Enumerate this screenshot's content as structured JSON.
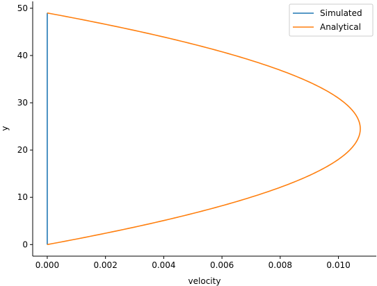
{
  "chart_data": {
    "type": "line",
    "title": "",
    "xlabel": "velocity",
    "ylabel": "y",
    "xlim": [
      -0.0005,
      0.0113
    ],
    "ylim": [
      -2.45,
      51.45
    ],
    "xticks": [
      0.0,
      0.002,
      0.004,
      0.006,
      0.008,
      0.01
    ],
    "xtick_labels": [
      "0.000",
      "0.002",
      "0.004",
      "0.006",
      "0.008",
      "0.010"
    ],
    "yticks": [
      0,
      10,
      20,
      30,
      40,
      50
    ],
    "ytick_labels": [
      "0",
      "10",
      "20",
      "30",
      "40",
      "50"
    ],
    "grid": false,
    "legend_position": "top-right",
    "series": [
      {
        "name": "Simulated",
        "color": "#1f77b4",
        "x": [
          0.0,
          0.0
        ],
        "y": [
          0,
          49
        ]
      },
      {
        "name": "Analytical",
        "color": "#ff7f0e",
        "shape": "parabolic",
        "y_range": [
          0,
          49
        ],
        "peak_velocity": 0.01075
      }
    ]
  }
}
